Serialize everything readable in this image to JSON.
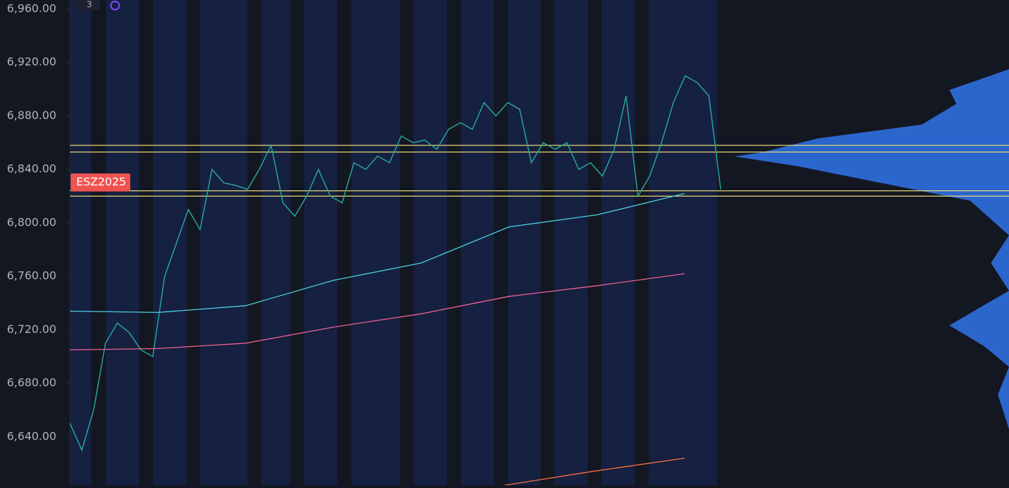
{
  "chart_data": {
    "type": "line",
    "symbol": "ESZ2025",
    "badge": "3",
    "ylim": [
      6603.75,
      6966.73
    ],
    "yticks": [
      {
        "value": 6960,
        "label": "6,960.00"
      },
      {
        "value": 6920,
        "label": "6,920.00"
      },
      {
        "value": 6880,
        "label": "6,880.00"
      },
      {
        "value": 6840,
        "label": "6,840.00"
      },
      {
        "value": 6800,
        "label": "6,800.00"
      },
      {
        "value": 6760,
        "label": "6,760.00"
      },
      {
        "value": 6720,
        "label": "6,720.00"
      },
      {
        "value": 6680,
        "label": "6,680.00"
      },
      {
        "value": 6640,
        "label": "6,640.00"
      }
    ],
    "series": [
      {
        "name": "price",
        "color": "#26a69a",
        "values": [
          6650,
          6630,
          6660,
          6710,
          6725,
          6718,
          6705,
          6700,
          6760,
          6785,
          6810,
          6795,
          6840,
          6830,
          6828,
          6825,
          6840,
          6858,
          6815,
          6805,
          6820,
          6840,
          6820,
          6815,
          6845,
          6840,
          6850,
          6845,
          6865,
          6860,
          6862,
          6855,
          6870,
          6875,
          6870,
          6890,
          6880,
          6890,
          6885,
          6845,
          6860,
          6855,
          6860,
          6840,
          6845,
          6835,
          6855,
          6895,
          6820,
          6835,
          6860,
          6890,
          6910,
          6905,
          6895,
          6825
        ]
      },
      {
        "name": "ma-fast",
        "color": "#4dd0e1",
        "values": [
          6734,
          6733,
          6738,
          6757,
          6770,
          6797,
          6806,
          6822
        ]
      },
      {
        "name": "ma-mid",
        "color": "#f06292",
        "values": [
          6705,
          6706,
          6710,
          6722,
          6732,
          6745,
          6753,
          6762
        ]
      },
      {
        "name": "ma-slow",
        "color": "#ff7043",
        "values": [
          6603,
          6614,
          6624
        ]
      }
    ],
    "levels": [
      6858,
      6853,
      6824,
      6820
    ]
  }
}
